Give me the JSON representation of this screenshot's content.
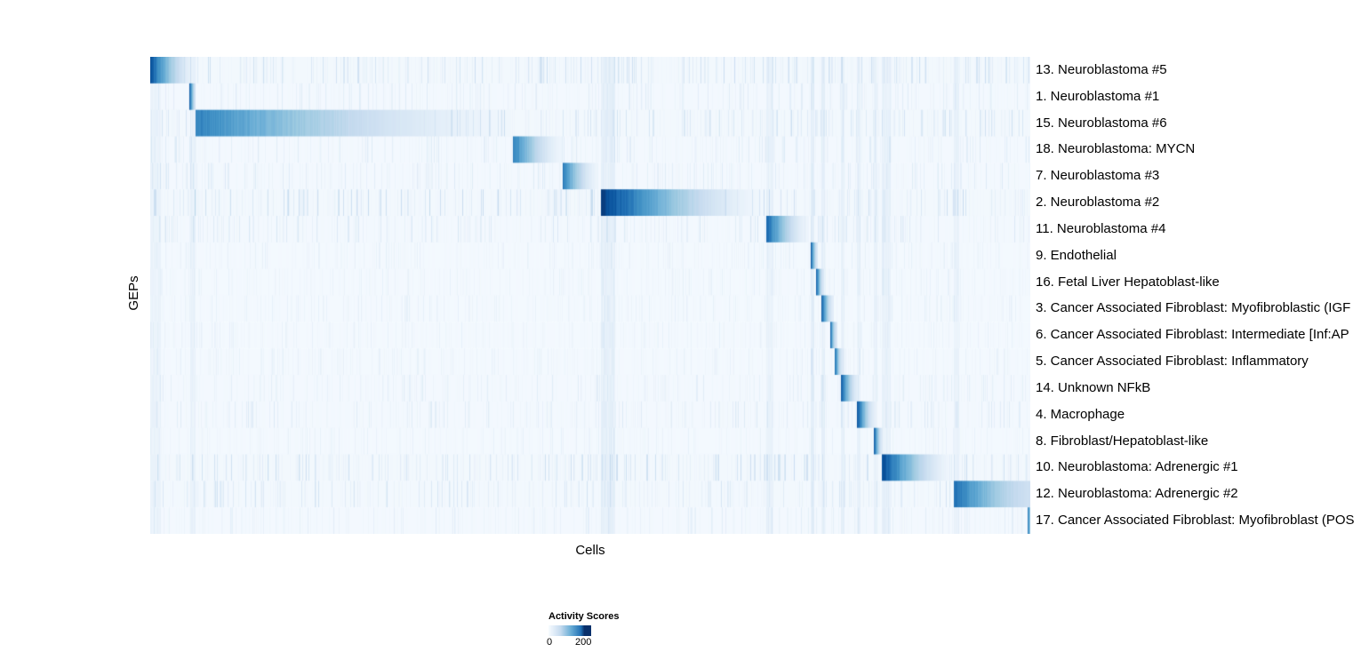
{
  "chart_data": {
    "type": "heatmap",
    "title": "",
    "xlabel": "Cells",
    "ylabel": "GEPs",
    "colormap": "Blues",
    "legend": {
      "title": "Activity Scores",
      "min": "0",
      "max": "200"
    },
    "grid": false,
    "description": "Cells (columns) ordered by assigned GEP; each row shows activity scores of one gene expression program, forming a diagonal staircase of gradient blocks fading from dark blue to white.",
    "rows": [
      {
        "label": "13. Neuroblastoma #5",
        "block": {
          "start": 0.0,
          "end": 0.054,
          "peak": 0.9,
          "floor": 0.03
        },
        "noise": 0.9
      },
      {
        "label": "1. Neuroblastoma #1",
        "block": {
          "start": 0.044,
          "end": 0.051,
          "peak": 0.92,
          "floor": 0.2
        },
        "noise": 0.45
      },
      {
        "label": "15. Neuroblastoma #6",
        "block": {
          "start": 0.051,
          "end": 0.41,
          "peak": 0.72,
          "floor": 0.04
        },
        "noise": 0.9
      },
      {
        "label": "18. Neuroblastoma: MYCN",
        "block": {
          "start": 0.412,
          "end": 0.468,
          "peak": 0.74,
          "floor": 0.05
        },
        "noise": 0.5
      },
      {
        "label": "7. Neuroblastoma #3",
        "block": {
          "start": 0.468,
          "end": 0.509,
          "peak": 0.76,
          "floor": 0.05
        },
        "noise": 0.5
      },
      {
        "label": "2. Neuroblastoma #2",
        "block": {
          "start": 0.512,
          "end": 0.7,
          "peak": 1.0,
          "floor": 0.03
        },
        "noise": 1.0
      },
      {
        "label": "11. Neuroblastoma #4",
        "block": {
          "start": 0.7,
          "end": 0.748,
          "peak": 0.84,
          "floor": 0.05
        },
        "noise": 0.6
      },
      {
        "label": "9. Endothelial",
        "block": {
          "start": 0.75,
          "end": 0.758,
          "peak": 0.9,
          "floor": 0.15
        },
        "noise": 0.3
      },
      {
        "label": "16. Fetal Liver Hepatoblast-like",
        "block": {
          "start": 0.756,
          "end": 0.765,
          "peak": 0.9,
          "floor": 0.15
        },
        "noise": 0.3
      },
      {
        "label": "3. Cancer Associated Fibroblast: Myofibroblastic (IGF",
        "block": {
          "start": 0.762,
          "end": 0.776,
          "peak": 0.9,
          "floor": 0.1
        },
        "noise": 0.3
      },
      {
        "label": "6. Cancer Associated Fibroblast: Intermediate [Inf:AP",
        "block": {
          "start": 0.772,
          "end": 0.78,
          "peak": 0.86,
          "floor": 0.15
        },
        "noise": 0.3
      },
      {
        "label": "5. Cancer Associated Fibroblast: Inflammatory",
        "block": {
          "start": 0.777,
          "end": 0.786,
          "peak": 0.86,
          "floor": 0.15
        },
        "noise": 0.3
      },
      {
        "label": "14. Unknown NFkB",
        "block": {
          "start": 0.784,
          "end": 0.805,
          "peak": 0.9,
          "floor": 0.08
        },
        "noise": 0.4
      },
      {
        "label": "4. Macrophage",
        "block": {
          "start": 0.803,
          "end": 0.824,
          "peak": 0.9,
          "floor": 0.08
        },
        "noise": 0.5
      },
      {
        "label": "8. Fibroblast/Hepatoblast-like",
        "block": {
          "start": 0.822,
          "end": 0.832,
          "peak": 0.86,
          "floor": 0.12
        },
        "noise": 0.3
      },
      {
        "label": "10. Neuroblastoma: Adrenergic #1",
        "block": {
          "start": 0.831,
          "end": 0.913,
          "peak": 0.95,
          "floor": 0.03
        },
        "noise": 0.9
      },
      {
        "label": "12. Neuroblastoma: Adrenergic #2",
        "block": {
          "start": 0.913,
          "end": 1.0,
          "peak": 0.8,
          "floor": 0.22
        },
        "noise": 0.7
      },
      {
        "label": "17. Cancer Associated Fibroblast: Myofibroblast (POS",
        "block": {
          "start": 0.996,
          "end": 1.0,
          "peak": 0.85,
          "floor": 0.4
        },
        "noise": 0.4
      }
    ],
    "shared_bands": [
      {
        "pos": 0.0,
        "width": 0.012,
        "alpha": 0.05
      },
      {
        "pos": 0.045,
        "width": 0.006,
        "alpha": 0.06
      },
      {
        "pos": 0.512,
        "width": 0.016,
        "alpha": 0.08
      },
      {
        "pos": 0.7,
        "width": 0.008,
        "alpha": 0.06
      },
      {
        "pos": 0.75,
        "width": 0.004,
        "alpha": 0.11
      },
      {
        "pos": 0.762,
        "width": 0.004,
        "alpha": 0.08
      },
      {
        "pos": 0.784,
        "width": 0.004,
        "alpha": 0.07
      },
      {
        "pos": 0.803,
        "width": 0.004,
        "alpha": 0.07
      },
      {
        "pos": 0.822,
        "width": 0.004,
        "alpha": 0.06
      },
      {
        "pos": 0.831,
        "width": 0.01,
        "alpha": 0.07
      },
      {
        "pos": 0.913,
        "width": 0.006,
        "alpha": 0.06
      }
    ]
  }
}
